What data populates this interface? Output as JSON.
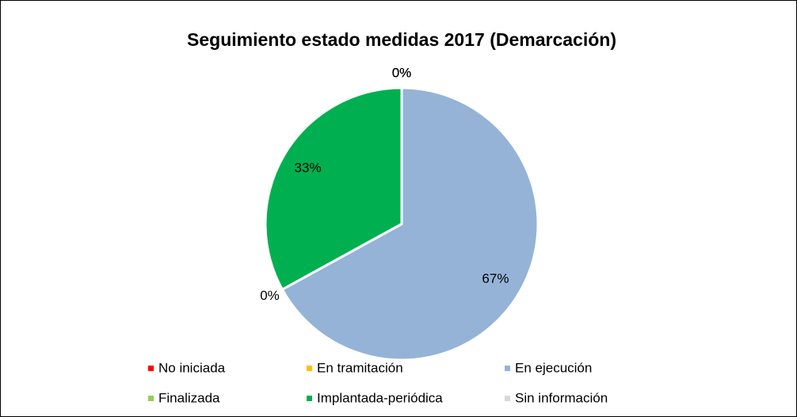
{
  "chart_data": {
    "type": "pie",
    "title": "Seguimiento estado medidas 2017 (Demarcación)",
    "categories": [
      "No iniciada",
      "En tramitación",
      "En ejecución",
      "Finalizada",
      "Implantada-periódica",
      "Sin información"
    ],
    "values": [
      0,
      0,
      67,
      0,
      33,
      0
    ],
    "value_labels": [
      "0%",
      "0%",
      "67%",
      "0%",
      "33%",
      "0%"
    ],
    "colors": [
      "#ff0000",
      "#ffc000",
      "#95b3d7",
      "#92d050",
      "#00b050",
      "#d9d9d9"
    ],
    "legend": "bottom"
  }
}
